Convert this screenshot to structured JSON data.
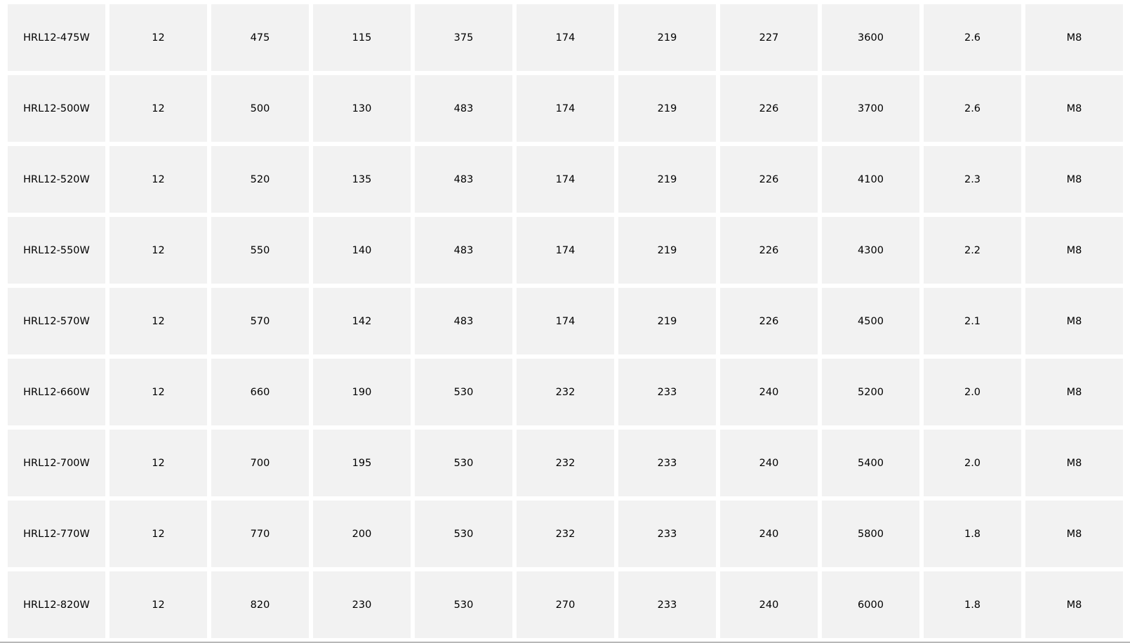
{
  "table": {
    "rows": [
      [
        "HRL12-475W",
        "12",
        "475",
        "115",
        "375",
        "174",
        "219",
        "227",
        "3600",
        "2.6",
        "M8"
      ],
      [
        "HRL12-500W",
        "12",
        "500",
        "130",
        "483",
        "174",
        "219",
        "226",
        "3700",
        "2.6",
        "M8"
      ],
      [
        "HRL12-520W",
        "12",
        "520",
        "135",
        "483",
        "174",
        "219",
        "226",
        "4100",
        "2.3",
        "M8"
      ],
      [
        "HRL12-550W",
        "12",
        "550",
        "140",
        "483",
        "174",
        "219",
        "226",
        "4300",
        "2.2",
        "M8"
      ],
      [
        "HRL12-570W",
        "12",
        "570",
        "142",
        "483",
        "174",
        "219",
        "226",
        "4500",
        "2.1",
        "M8"
      ],
      [
        "HRL12-660W",
        "12",
        "660",
        "190",
        "530",
        "232",
        "233",
        "240",
        "5200",
        "2.0",
        "M8"
      ],
      [
        "HRL12-700W",
        "12",
        "700",
        "195",
        "530",
        "232",
        "233",
        "240",
        "5400",
        "2.0",
        "M8"
      ],
      [
        "HRL12-770W",
        "12",
        "770",
        "200",
        "530",
        "232",
        "233",
        "240",
        "5800",
        "1.8",
        "M8"
      ],
      [
        "HRL12-820W",
        "12",
        "820",
        "230",
        "530",
        "270",
        "233",
        "240",
        "6000",
        "1.8",
        "M8"
      ]
    ]
  },
  "colors": {
    "cell_background": "#f2f2f2",
    "text": "#000000"
  }
}
